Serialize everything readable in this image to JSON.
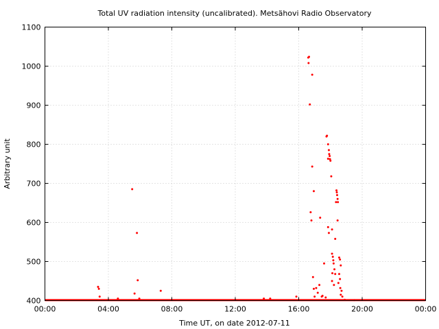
{
  "chart_data": {
    "type": "scatter",
    "title": "Total UV radiation intensity (uncalibrated). Metsähovi Radio Observatory",
    "xlabel": "Time UT, on date 2012-07-11",
    "ylabel": "Arbitrary unit",
    "x_unit": "hours UT",
    "xlim": [
      0,
      24
    ],
    "ylim": [
      400,
      1100
    ],
    "xticks": [
      {
        "value": 0,
        "label": "00:00"
      },
      {
        "value": 4,
        "label": "04:00"
      },
      {
        "value": 8,
        "label": "08:00"
      },
      {
        "value": 12,
        "label": "12:00"
      },
      {
        "value": 16,
        "label": "16:00"
      },
      {
        "value": 20,
        "label": "20:00"
      },
      {
        "value": 24,
        "label": "00:00"
      }
    ],
    "yticks": [
      400,
      500,
      600,
      700,
      800,
      900,
      1000,
      1100
    ],
    "grid": true,
    "marker_color": "#ff0000",
    "baseline": {
      "y": 401,
      "x_from": 0,
      "x_to": 24
    },
    "points": [
      [
        3.35,
        435
      ],
      [
        3.4,
        430
      ],
      [
        3.45,
        410
      ],
      [
        4.6,
        405
      ],
      [
        5.5,
        685
      ],
      [
        5.65,
        418
      ],
      [
        5.8,
        573
      ],
      [
        5.85,
        452
      ],
      [
        5.95,
        405
      ],
      [
        7.3,
        425
      ],
      [
        13.8,
        405
      ],
      [
        14.2,
        405
      ],
      [
        15.85,
        410
      ],
      [
        16.6,
        1022
      ],
      [
        16.65,
        1024
      ],
      [
        16.62,
        1008
      ],
      [
        16.7,
        902
      ],
      [
        16.85,
        978
      ],
      [
        16.85,
        743
      ],
      [
        16.95,
        680
      ],
      [
        16.75,
        626
      ],
      [
        16.8,
        605
      ],
      [
        16.9,
        460
      ],
      [
        16.95,
        430
      ],
      [
        17.1,
        432
      ],
      [
        17.2,
        420
      ],
      [
        17.3,
        440
      ],
      [
        17.35,
        612
      ],
      [
        17.45,
        410
      ],
      [
        17.6,
        495
      ],
      [
        17.75,
        820
      ],
      [
        17.78,
        822
      ],
      [
        17.85,
        800
      ],
      [
        17.9,
        785
      ],
      [
        17.92,
        775
      ],
      [
        17.95,
        770
      ],
      [
        17.97,
        762
      ],
      [
        17.85,
        763
      ],
      [
        18.0,
        758
      ],
      [
        18.05,
        718
      ],
      [
        18.1,
        582
      ],
      [
        17.85,
        588
      ],
      [
        17.9,
        573
      ],
      [
        18.1,
        520
      ],
      [
        18.15,
        512
      ],
      [
        18.18,
        503
      ],
      [
        18.2,
        495
      ],
      [
        18.12,
        470
      ],
      [
        18.1,
        450
      ],
      [
        18.25,
        480
      ],
      [
        18.3,
        468
      ],
      [
        18.22,
        440
      ],
      [
        18.3,
        558
      ],
      [
        18.35,
        652
      ],
      [
        18.38,
        682
      ],
      [
        18.4,
        677
      ],
      [
        18.42,
        670
      ],
      [
        18.45,
        660
      ],
      [
        18.47,
        652
      ],
      [
        18.45,
        605
      ],
      [
        18.55,
        510
      ],
      [
        18.6,
        505
      ],
      [
        18.65,
        490
      ],
      [
        18.55,
        468
      ],
      [
        18.6,
        455
      ],
      [
        18.5,
        445
      ],
      [
        18.62,
        432
      ],
      [
        18.7,
        425
      ],
      [
        18.65,
        415
      ],
      [
        18.75,
        410
      ],
      [
        17.0,
        410
      ],
      [
        17.5,
        412
      ],
      [
        17.7,
        408
      ],
      [
        18.9,
        402
      ],
      [
        19.5,
        401
      ]
    ]
  }
}
